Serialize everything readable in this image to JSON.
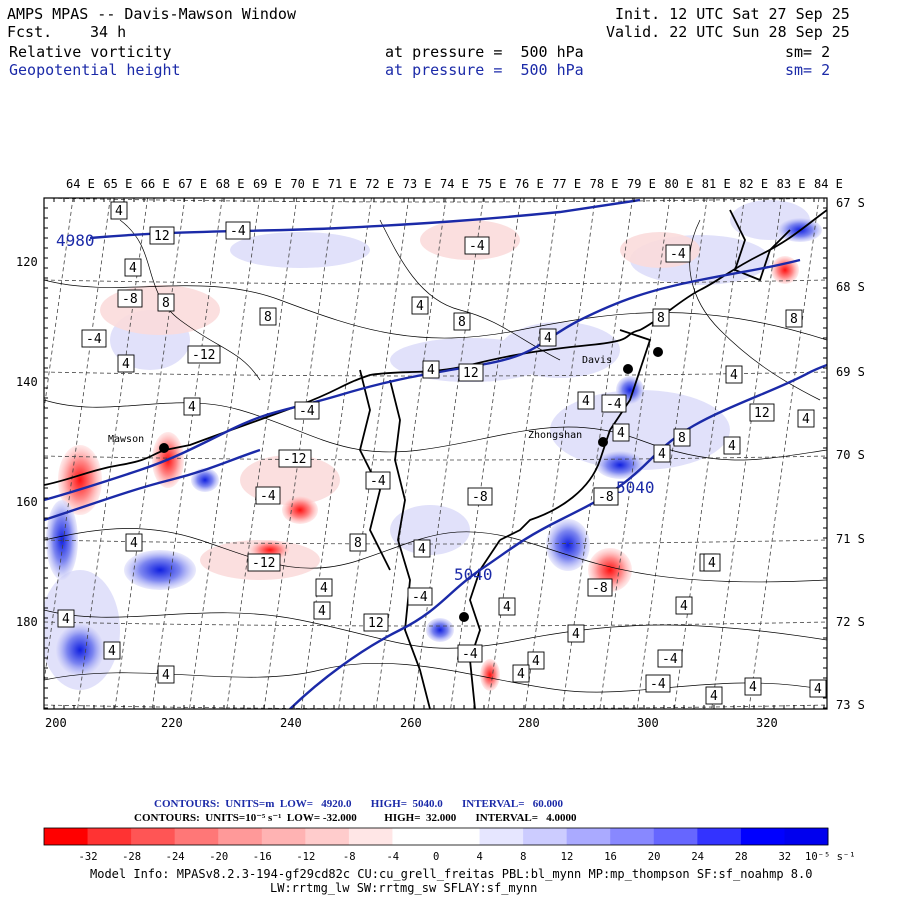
{
  "header": {
    "model": "AMPS MPAS -- Davis-Mawson Window",
    "fcst_label": "Fcst.",
    "fcst_value": "34 h",
    "init": "Init. 12 UTC Sat 27 Sep 25",
    "valid": "Valid. 22 UTC Sun 28 Sep 25",
    "field1": "Relative vorticity",
    "field1_level": "at pressure =  500 hPa",
    "field1_sm": "sm= 2",
    "field2": "Geopotential height",
    "field2_level": "at pressure =  500 hPa",
    "field2_sm": "sm= 2"
  },
  "map": {
    "lon_labels": [
      "64 E",
      "65 E",
      "66 E",
      "67 E",
      "68 E",
      "69 E",
      "70 E",
      "71 E",
      "72 E",
      "73 E",
      "74 E",
      "75 E",
      "76 E",
      "77 E",
      "78 E",
      "79 E",
      "80 E",
      "81 E",
      "82 E",
      "83 E",
      "84 E"
    ],
    "lat_labels": [
      "67 S",
      "68 S",
      "69 S",
      "70 S",
      "71 S",
      "72 S",
      "73 S"
    ],
    "x_ticks": [
      "200",
      "220",
      "240",
      "260",
      "280",
      "300",
      "320"
    ],
    "y_ticks": [
      "120",
      "140",
      "160",
      "180"
    ],
    "stations": [
      "Davis",
      "Mawson",
      "Zhongshan"
    ],
    "height_labels": [
      "5040",
      "5040",
      "4980"
    ],
    "vorticity_labels": [
      "4",
      "-4",
      "12",
      "-4",
      "4",
      "-4",
      "-8",
      "8",
      "-4",
      "8",
      "-12",
      "4",
      "-4",
      "-12",
      "-4",
      "4",
      "4",
      "8",
      "12",
      "4",
      "-8",
      "-4",
      "4",
      "8",
      "4",
      "4",
      "4",
      "-4",
      "8",
      "12",
      "4",
      "8",
      "4",
      "-8",
      "4",
      "4",
      "4",
      "-12",
      "4",
      "12",
      "4",
      "4",
      "-4",
      "-4",
      "4",
      "4",
      "-4",
      "4",
      "4",
      "-8",
      "4",
      "4",
      "8",
      "4",
      "4",
      "-8",
      "4",
      "4",
      "4",
      "-4",
      "4"
    ],
    "colors": {
      "positive": "#e8101a",
      "negative": "#1020d0",
      "height_contour": "#1b2aa8"
    }
  },
  "footer": {
    "height_contours": "CONTOURS:  UNITS=m  LOW=   4920.0       HIGH=  5040.0       INTERVAL=   60.000",
    "vort_contours": "CONTOURS:  UNITS=10⁻⁵ s⁻¹  LOW= -32.000          HIGH=  32.000       INTERVAL=   4.0000",
    "colorbar_labels": [
      "-32",
      "-28",
      "-24",
      "-20",
      "-16",
      "-12",
      "-8",
      "-4",
      "0",
      "4",
      "8",
      "12",
      "16",
      "20",
      "24",
      "28",
      "32"
    ],
    "colorbar_unit": "10⁻⁵ s⁻¹",
    "colorbar_colors": [
      "#ff0000",
      "#ff3333",
      "#ff5555",
      "#ff7777",
      "#ff9999",
      "#ffb3b3",
      "#ffcccc",
      "#ffe6e6",
      "#ffffff",
      "#ffffff",
      "#e6e6ff",
      "#ccccff",
      "#aaaaff",
      "#8888ff",
      "#6666ff",
      "#3333ff",
      "#0000ff",
      "#0000ee"
    ],
    "model_info": "Model Info: MPASv8.2.3-194-gf29cd82c CU:cu_grell_freitas PBL:bl_mynn MP:mp_thompson SF:sf_noahmp 8.0",
    "model_info2": "LW:rrtmg_lw SW:rrtmg_sw SFLAY:sf_mynn"
  }
}
